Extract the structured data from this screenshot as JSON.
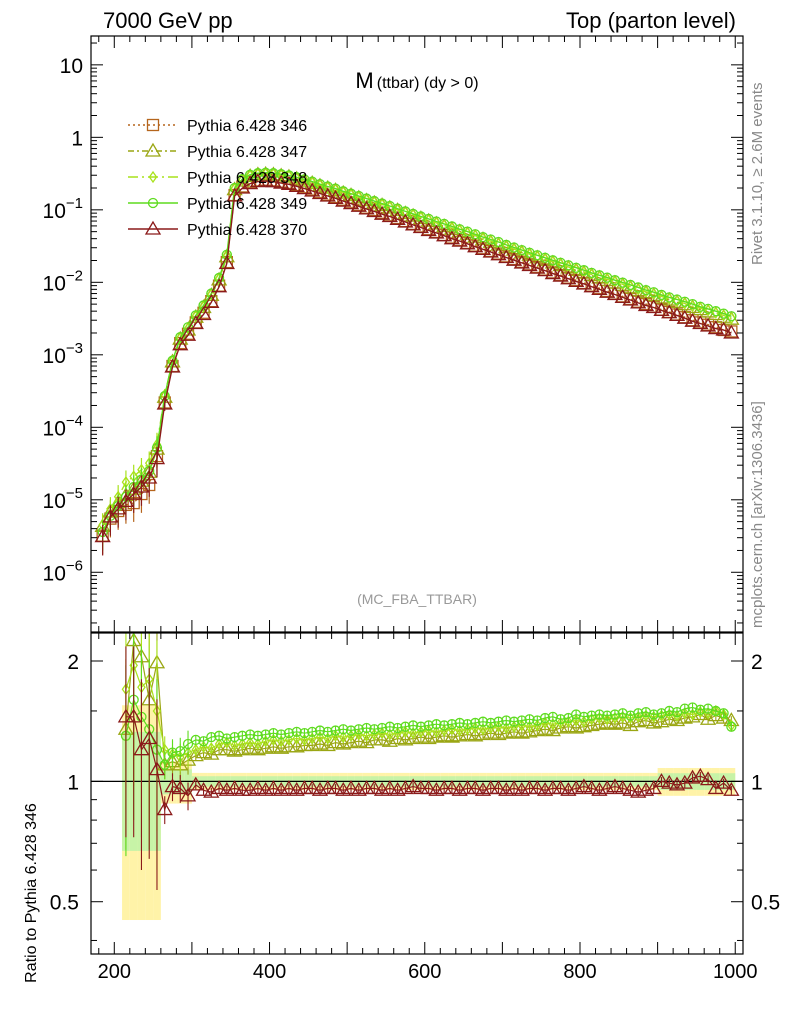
{
  "header": {
    "left": "7000 GeV pp",
    "right": "Top (parton level)"
  },
  "plot": {
    "title_main": "M",
    "title_sub": "(ttbar) (dy > 0)",
    "watermark": "(MC_FBA_TTBAR)"
  },
  "side_labels": {
    "rivet": "Rivet 3.1.10, ≥ 2.6M events",
    "mcplots": "mcplots.cern.ch [arXiv:1306.3436]"
  },
  "ratio_ylabel": "Ratio to Pythia 6.428 346",
  "chart_data": [
    {
      "type": "line",
      "yscale": "log",
      "xlim": [
        170,
        1010
      ],
      "ylim": [
        1.5e-07,
        25
      ],
      "yticks": [
        {
          "v": 1e-06,
          "base": "10",
          "exp": "−6"
        },
        {
          "v": 1e-05,
          "base": "10",
          "exp": "−5"
        },
        {
          "v": 0.0001,
          "base": "10",
          "exp": "−4"
        },
        {
          "v": 0.001,
          "base": "10",
          "exp": "−3"
        },
        {
          "v": 0.01,
          "base": "10",
          "exp": "−2"
        },
        {
          "v": 0.1,
          "base": "10",
          "exp": "−1"
        },
        {
          "v": 1,
          "base": "1",
          "exp": ""
        },
        {
          "v": 10,
          "base": "10",
          "exp": ""
        }
      ],
      "x": [
        185,
        195,
        205,
        215,
        225,
        235,
        245,
        255,
        265,
        275,
        285,
        295,
        305,
        315,
        325,
        335,
        345,
        355,
        365,
        375,
        385,
        395,
        405,
        415,
        425,
        435,
        445,
        455,
        465,
        475,
        485,
        495,
        505,
        515,
        525,
        535,
        545,
        555,
        565,
        575,
        585,
        595,
        605,
        615,
        625,
        635,
        645,
        655,
        665,
        675,
        685,
        695,
        705,
        715,
        725,
        735,
        745,
        755,
        765,
        775,
        785,
        795,
        805,
        815,
        825,
        835,
        845,
        855,
        865,
        875,
        885,
        895,
        905,
        915,
        925,
        935,
        945,
        955,
        965,
        975,
        985,
        995
      ],
      "series": [
        {
          "name": "Pythia 6.428 346",
          "color": "#b5651d",
          "dash": "2,3",
          "marker": "square",
          "values": [
            3.2e-06,
            5.5e-06,
            7e-06,
            8.5e-06,
            9e-06,
            1.2e-05,
            1.6e-05,
            4e-05,
            0.00022,
            0.0007,
            0.00145,
            0.00195,
            0.0028,
            0.0038,
            0.0055,
            0.009,
            0.019,
            0.16,
            0.21,
            0.24,
            0.255,
            0.26,
            0.255,
            0.245,
            0.235,
            0.22,
            0.205,
            0.19,
            0.175,
            0.162,
            0.15,
            0.138,
            0.127,
            0.117,
            0.107,
            0.099,
            0.091,
            0.084,
            0.077,
            0.07,
            0.064,
            0.059,
            0.054,
            0.0495,
            0.045,
            0.0415,
            0.0382,
            0.035,
            0.0321,
            0.0295,
            0.0271,
            0.0249,
            0.0228,
            0.0209,
            0.0192,
            0.0177,
            0.0163,
            0.015,
            0.0137,
            0.0126,
            0.0116,
            0.0107,
            0.0098,
            0.009,
            0.0083,
            0.0076,
            0.007,
            0.0064,
            0.0059,
            0.0054,
            0.005,
            0.0046,
            0.0042,
            0.0039,
            0.0036,
            0.0033,
            0.003,
            0.0028,
            0.0026,
            0.0024,
            0.0022,
            0.0021
          ]
        },
        {
          "name": "Pythia 6.428 347",
          "color": "#9aa613",
          "dash": "6,3,2,3",
          "marker": "triangle",
          "values": [
            4.3e-06,
            6.8e-06,
            9.2e-06,
            1.15e-05,
            1.4e-05,
            1.8e-05,
            2.4e-05,
            5e-05,
            0.00026,
            0.0008,
            0.00165,
            0.0022,
            0.0033,
            0.0045,
            0.0066,
            0.0108,
            0.0225,
            0.19,
            0.25,
            0.29,
            0.305,
            0.31,
            0.305,
            0.295,
            0.284,
            0.267,
            0.249,
            0.232,
            0.214,
            0.199,
            0.185,
            0.17,
            0.158,
            0.146,
            0.134,
            0.124,
            0.115,
            0.106,
            0.098,
            0.089,
            0.082,
            0.076,
            0.07,
            0.064,
            0.059,
            0.054,
            0.05,
            0.046,
            0.042,
            0.039,
            0.0357,
            0.0328,
            0.0302,
            0.0278,
            0.0256,
            0.0236,
            0.0218,
            0.0201,
            0.0185,
            0.0171,
            0.0158,
            0.0146,
            0.0134,
            0.0124,
            0.0115,
            0.0106,
            0.0098,
            0.0091,
            0.0084,
            0.0077,
            0.0072,
            0.0066,
            0.0061,
            0.0057,
            0.0053,
            0.0049,
            0.0045,
            0.0042,
            0.0039,
            0.0036,
            0.0033,
            0.0031
          ]
        },
        {
          "name": "Pythia 6.428 348",
          "color": "#a8e21b",
          "dash": "10,4,2,4",
          "marker": "diamond",
          "values": [
            4.5e-06,
            7.5e-06,
            1.1e-05,
            1.75e-05,
            2.1e-05,
            2.6e-05,
            3.2e-05,
            5.8e-05,
            0.00028,
            0.00082,
            0.0017,
            0.0023,
            0.0034,
            0.0046,
            0.0068,
            0.0112,
            0.023,
            0.195,
            0.26,
            0.295,
            0.31,
            0.315,
            0.31,
            0.3,
            0.29,
            0.272,
            0.254,
            0.236,
            0.218,
            0.203,
            0.189,
            0.174,
            0.161,
            0.149,
            0.137,
            0.127,
            0.118,
            0.109,
            0.1,
            0.092,
            0.085,
            0.078,
            0.072,
            0.066,
            0.061,
            0.056,
            0.052,
            0.048,
            0.044,
            0.04,
            0.037,
            0.034,
            0.0312,
            0.0287,
            0.0264,
            0.0244,
            0.0225,
            0.0208,
            0.0192,
            0.0177,
            0.0163,
            0.015,
            0.0139,
            0.0128,
            0.0119,
            0.011,
            0.0102,
            0.0094,
            0.0087,
            0.008,
            0.0074,
            0.0069,
            0.0064,
            0.0059,
            0.0055,
            0.0051,
            0.0047,
            0.0044,
            0.0041,
            0.0038,
            0.0035,
            0.0032
          ]
        },
        {
          "name": "Pythia 6.428 349",
          "color": "#5edc1f",
          "dash": "",
          "marker": "circle",
          "values": [
            3.6e-06,
            6e-06,
            8.2e-06,
            1.1e-05,
            1.5e-05,
            1.9e-05,
            2.5e-05,
            5.2e-05,
            0.00027,
            0.00083,
            0.00175,
            0.0024,
            0.0035,
            0.0048,
            0.007,
            0.0115,
            0.024,
            0.2,
            0.265,
            0.305,
            0.32,
            0.325,
            0.32,
            0.31,
            0.298,
            0.281,
            0.263,
            0.245,
            0.226,
            0.21,
            0.196,
            0.18,
            0.167,
            0.155,
            0.143,
            0.132,
            0.122,
            0.113,
            0.104,
            0.095,
            0.088,
            0.081,
            0.075,
            0.069,
            0.064,
            0.059,
            0.054,
            0.05,
            0.046,
            0.042,
            0.039,
            0.036,
            0.0328,
            0.0302,
            0.0278,
            0.0256,
            0.0236,
            0.0218,
            0.0201,
            0.0186,
            0.0172,
            0.0159,
            0.0147,
            0.0135,
            0.0125,
            0.0116,
            0.0107,
            0.0099,
            0.0092,
            0.0085,
            0.0078,
            0.0073,
            0.0067,
            0.0062,
            0.0058,
            0.0054,
            0.005,
            0.0046,
            0.0043,
            0.004,
            0.0037,
            0.0034
          ]
        },
        {
          "name": "Pythia 6.428 370",
          "color": "#8b1a1a",
          "dash": "",
          "marker": "triangle",
          "values": [
            3.1e-06,
            5.8e-06,
            7.5e-06,
            9.5e-06,
            1.2e-05,
            1.5e-05,
            2e-05,
            3.7e-05,
            0.00021,
            0.00068,
            0.00138,
            0.00186,
            0.0027,
            0.0036,
            0.0053,
            0.0087,
            0.0182,
            0.155,
            0.2,
            0.23,
            0.245,
            0.25,
            0.244,
            0.234,
            0.225,
            0.211,
            0.196,
            0.182,
            0.168,
            0.155,
            0.144,
            0.132,
            0.122,
            0.112,
            0.103,
            0.095,
            0.087,
            0.081,
            0.074,
            0.068,
            0.062,
            0.057,
            0.052,
            0.048,
            0.044,
            0.04,
            0.037,
            0.034,
            0.031,
            0.0285,
            0.0262,
            0.024,
            0.022,
            0.0202,
            0.0185,
            0.0171,
            0.0157,
            0.0145,
            0.0132,
            0.0122,
            0.0112,
            0.0103,
            0.0095,
            0.0087,
            0.008,
            0.0073,
            0.0068,
            0.0062,
            0.0057,
            0.0052,
            0.0048,
            0.0045,
            0.0041,
            0.0038,
            0.0035,
            0.0032,
            0.0029,
            0.0027,
            0.0025,
            0.0023,
            0.0022,
            0.002
          ]
        }
      ]
    },
    {
      "type": "line",
      "yscale": "log",
      "xlim": [
        170,
        1010
      ],
      "ylim": [
        0.37,
        2.35
      ],
      "ylabel": "Ratio to Pythia 6.428 346",
      "yticks": [
        0.5,
        1,
        2
      ],
      "ytick_labels": [
        "0.5",
        "1",
        "2"
      ],
      "xticks": [
        200,
        400,
        600,
        800,
        1000
      ],
      "xtick_labels": [
        "200",
        "400",
        "600",
        "800",
        "1000"
      ],
      "reference_line": 1,
      "x": [
        215,
        225,
        235,
        245,
        255,
        265,
        275,
        285,
        295,
        305,
        315,
        325,
        335,
        345,
        355,
        365,
        375,
        385,
        395,
        405,
        415,
        425,
        435,
        445,
        455,
        465,
        475,
        485,
        495,
        505,
        515,
        525,
        535,
        545,
        555,
        565,
        575,
        585,
        595,
        605,
        615,
        625,
        635,
        645,
        655,
        665,
        675,
        685,
        695,
        705,
        715,
        725,
        735,
        745,
        755,
        765,
        775,
        785,
        795,
        805,
        815,
        825,
        835,
        845,
        855,
        865,
        875,
        885,
        895,
        905,
        915,
        925,
        935,
        945,
        955,
        965,
        975,
        985,
        995
      ],
      "series": [
        {
          "name": "Pythia 6.428 347",
          "color": "#9aa613",
          "values": [
            1.35,
            2.25,
            2.05,
            1.6,
            1.98,
            1.1,
            1.12,
            1.1,
            1.13,
            1.16,
            1.18,
            1.17,
            1.2,
            1.2,
            1.19,
            1.2,
            1.21,
            1.2,
            1.21,
            1.22,
            1.21,
            1.22,
            1.22,
            1.23,
            1.23,
            1.24,
            1.23,
            1.25,
            1.24,
            1.25,
            1.26,
            1.25,
            1.27,
            1.27,
            1.26,
            1.28,
            1.27,
            1.28,
            1.29,
            1.28,
            1.29,
            1.3,
            1.29,
            1.3,
            1.31,
            1.3,
            1.31,
            1.32,
            1.31,
            1.32,
            1.33,
            1.32,
            1.33,
            1.34,
            1.35,
            1.34,
            1.36,
            1.37,
            1.36,
            1.37,
            1.38,
            1.39,
            1.4,
            1.39,
            1.4,
            1.38,
            1.41,
            1.42,
            1.4,
            1.41,
            1.43,
            1.42,
            1.44,
            1.45,
            1.47,
            1.43,
            1.46,
            1.44,
            1.42
          ]
        },
        {
          "name": "Pythia 6.428 348",
          "color": "#a8e21b",
          "values": [
            1.7,
            1.95,
            1.72,
            1.8,
            1.5,
            1.2,
            1.17,
            1.15,
            1.18,
            1.2,
            1.22,
            1.21,
            1.24,
            1.25,
            1.23,
            1.24,
            1.25,
            1.24,
            1.26,
            1.27,
            1.26,
            1.27,
            1.28,
            1.27,
            1.28,
            1.29,
            1.28,
            1.3,
            1.29,
            1.3,
            1.31,
            1.3,
            1.31,
            1.32,
            1.31,
            1.32,
            1.33,
            1.32,
            1.33,
            1.34,
            1.33,
            1.34,
            1.35,
            1.34,
            1.35,
            1.36,
            1.35,
            1.36,
            1.37,
            1.36,
            1.37,
            1.38,
            1.37,
            1.38,
            1.4,
            1.39,
            1.4,
            1.41,
            1.42,
            1.41,
            1.43,
            1.44,
            1.43,
            1.44,
            1.45,
            1.44,
            1.45,
            1.46,
            1.45,
            1.46,
            1.47,
            1.46,
            1.48,
            1.47,
            1.49,
            1.48,
            1.5,
            1.47,
            1.38
          ]
        },
        {
          "name": "Pythia 6.428 349",
          "color": "#5edc1f",
          "values": [
            1.3,
            1.6,
            1.45,
            1.35,
            1.2,
            1.1,
            1.18,
            1.19,
            1.24,
            1.27,
            1.26,
            1.29,
            1.3,
            1.28,
            1.29,
            1.3,
            1.31,
            1.3,
            1.31,
            1.32,
            1.31,
            1.32,
            1.33,
            1.32,
            1.33,
            1.34,
            1.33,
            1.34,
            1.35,
            1.34,
            1.35,
            1.36,
            1.35,
            1.36,
            1.37,
            1.36,
            1.37,
            1.38,
            1.37,
            1.38,
            1.39,
            1.38,
            1.39,
            1.4,
            1.39,
            1.4,
            1.41,
            1.4,
            1.41,
            1.42,
            1.41,
            1.42,
            1.43,
            1.42,
            1.44,
            1.45,
            1.43,
            1.44,
            1.47,
            1.45,
            1.46,
            1.47,
            1.46,
            1.47,
            1.48,
            1.46,
            1.48,
            1.49,
            1.47,
            1.48,
            1.5,
            1.49,
            1.52,
            1.53,
            1.51,
            1.52,
            1.5,
            1.48,
            1.37
          ]
        },
        {
          "name": "Pythia 6.428 370",
          "color": "#8b1a1a",
          "values": [
            1.45,
            1.45,
            1.2,
            1.28,
            1.07,
            0.85,
            0.97,
            0.96,
            0.92,
            0.98,
            0.95,
            0.94,
            0.96,
            0.95,
            0.96,
            0.95,
            0.95,
            0.96,
            0.95,
            0.96,
            0.95,
            0.96,
            0.95,
            0.96,
            0.96,
            0.95,
            0.96,
            0.96,
            0.95,
            0.96,
            0.95,
            0.96,
            0.96,
            0.95,
            0.96,
            0.95,
            0.96,
            0.97,
            0.96,
            0.96,
            0.95,
            0.96,
            0.96,
            0.95,
            0.96,
            0.96,
            0.95,
            0.96,
            0.96,
            0.95,
            0.96,
            0.95,
            0.96,
            0.96,
            0.95,
            0.96,
            0.96,
            0.95,
            0.96,
            0.97,
            0.96,
            0.95,
            0.96,
            0.97,
            0.96,
            0.95,
            0.94,
            0.95,
            0.96,
            1.0,
            0.99,
            0.98,
            0.99,
            1.02,
            1.03,
            1.01,
            0.96,
            0.99,
            0.95
          ]
        }
      ]
    }
  ]
}
